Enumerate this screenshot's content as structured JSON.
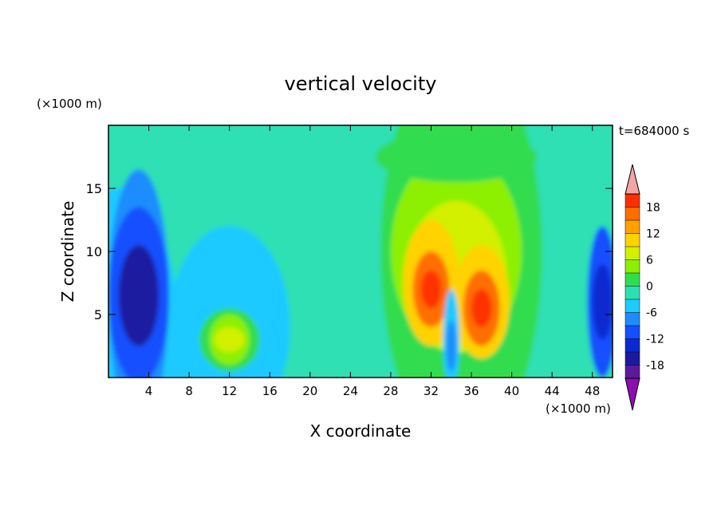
{
  "chart_data": {
    "type": "heatmap",
    "title": "vertical velocity",
    "xlabel": "X coordinate",
    "ylabel": "Z coordinate",
    "x_unit": "(×1000 m)",
    "y_unit": "(×1000 m)",
    "time_label": "t=684000 s",
    "xlim": [
      0,
      50
    ],
    "ylim": [
      0,
      20
    ],
    "x_ticks": [
      4,
      8,
      12,
      16,
      20,
      24,
      28,
      32,
      36,
      40,
      44,
      48
    ],
    "y_ticks": [
      5,
      10,
      15
    ],
    "colorbar": {
      "levels": [
        -21,
        -18,
        -15,
        -12,
        -9,
        -6,
        -3,
        0,
        3,
        6,
        9,
        12,
        15,
        18,
        21
      ],
      "tick_labels": [
        "18",
        "12",
        "6",
        "0",
        "-6",
        "-12",
        "-18"
      ],
      "tick_values": [
        18,
        12,
        6,
        0,
        -6,
        -12,
        -18
      ],
      "colors": [
        "#8e0db0",
        "#5a1a9a",
        "#1a1aa0",
        "#0a2ad0",
        "#1450ff",
        "#1e8cff",
        "#1ecaff",
        "#2de0b4",
        "#32dc50",
        "#8cf000",
        "#d2f000",
        "#ffd200",
        "#ffa000",
        "#ff6e00",
        "#ff3000",
        "#f4a4a4"
      ]
    },
    "features": [
      {
        "name": "downdraft",
        "x": 3,
        "z": 6.5,
        "value": -15
      },
      {
        "name": "updraft",
        "x": 12,
        "z": 3,
        "value": 8
      },
      {
        "name": "updraft",
        "x": 32,
        "z": 7,
        "value": 18
      },
      {
        "name": "downdraft",
        "x": 34,
        "z": 2.5,
        "value": -8
      },
      {
        "name": "updraft",
        "x": 37,
        "z": 5.5,
        "value": 18
      },
      {
        "name": "downdraft",
        "x": 49,
        "z": 6,
        "value": -12
      }
    ]
  }
}
